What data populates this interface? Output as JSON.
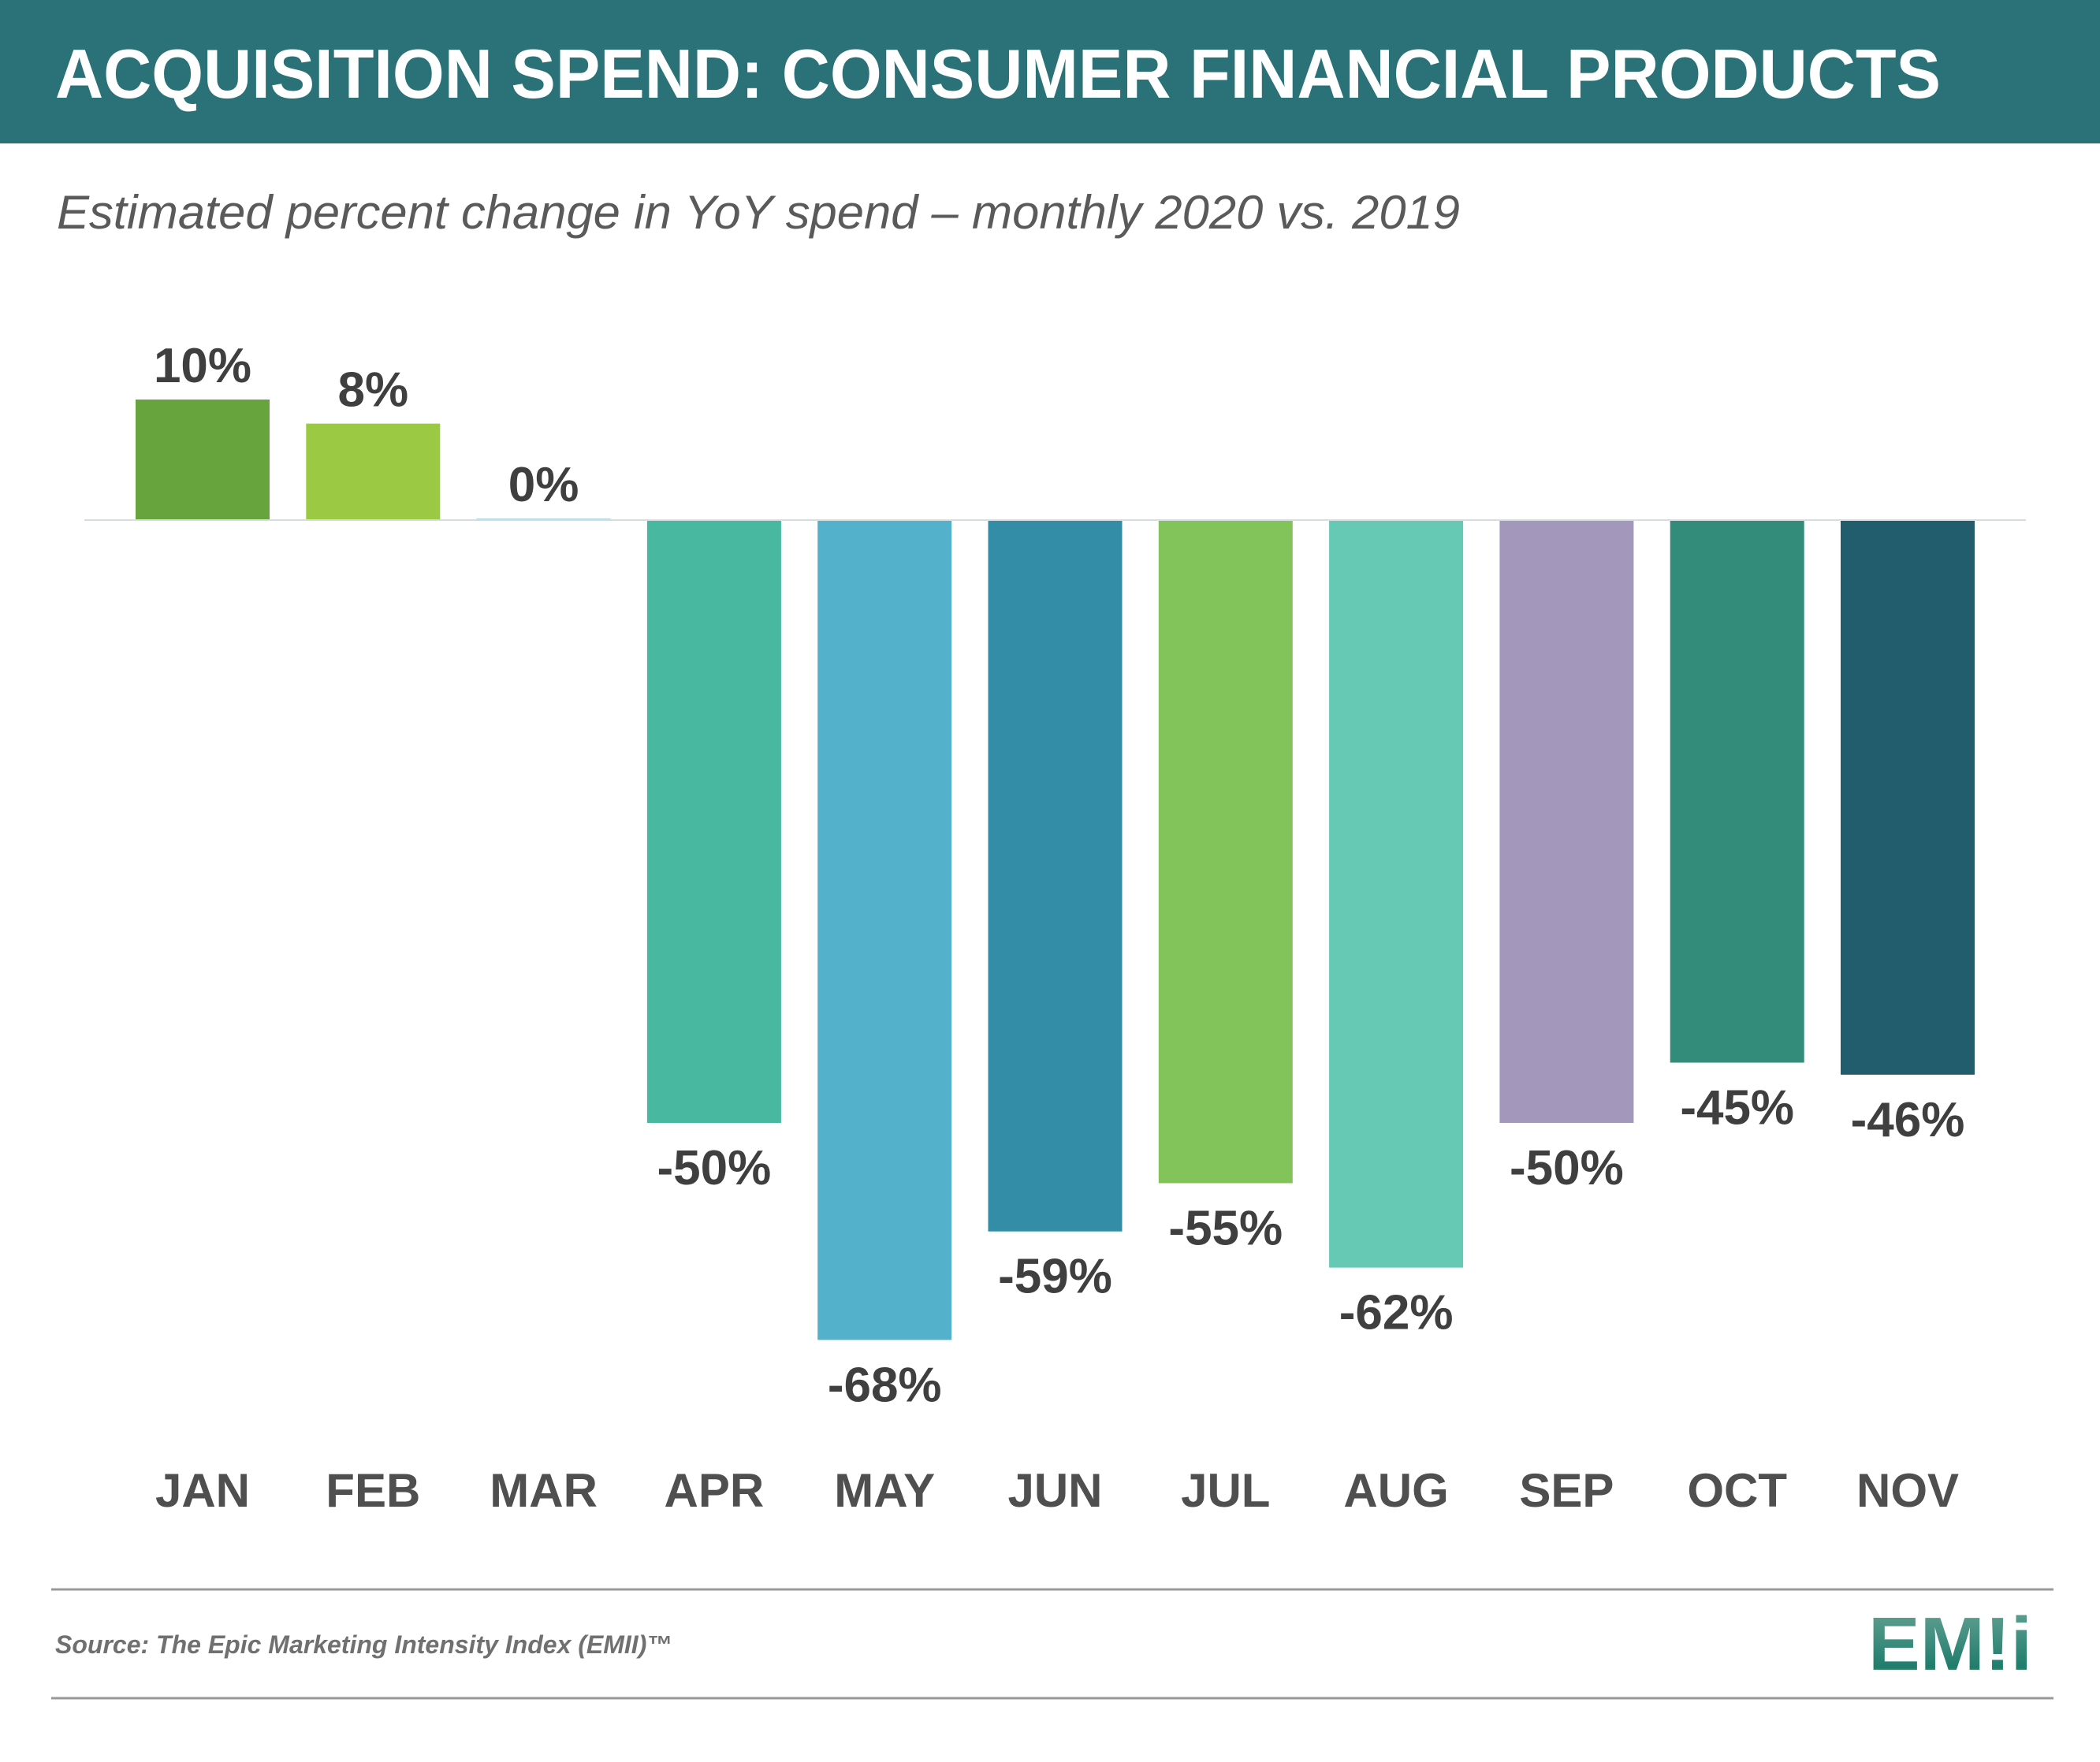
{
  "header": {
    "title": "ACQUISITION SPEND: CONSUMER FINANCIAL PRODUCTS",
    "background": "#2b7278"
  },
  "chart_data": {
    "type": "bar",
    "title": "ACQUISITION SPEND: CONSUMER FINANCIAL PRODUCTS",
    "subtitle": "Estimated percent change in YoY spend – monthly 2020 vs. 2019",
    "categories": [
      "JAN",
      "FEB",
      "MAR",
      "APR",
      "MAY",
      "JUN",
      "JUL",
      "AUG",
      "SEP",
      "OCT",
      "NOV"
    ],
    "values": [
      10,
      8,
      0,
      -50,
      -68,
      -59,
      -55,
      -62,
      -50,
      -45,
      -46
    ],
    "labels": [
      "10%",
      "8%",
      "0%",
      "-50%",
      "-68%",
      "-59%",
      "-55%",
      "-62%",
      "-50%",
      "-45%",
      "-46%"
    ],
    "colors": [
      "#68a43e",
      "#9cc944",
      "#a8d4e6",
      "#48b9a0",
      "#53b1cc",
      "#348da6",
      "#82c45a",
      "#66c9b3",
      "#a397bb",
      "#338c7a",
      "#225d6e"
    ],
    "xlabel": "",
    "ylabel": "",
    "grid": false,
    "legend": "none"
  },
  "footer": {
    "source": "Source: The Epic Marketing Intensity Index (EMII)™",
    "logo_text": "EM!i"
  }
}
